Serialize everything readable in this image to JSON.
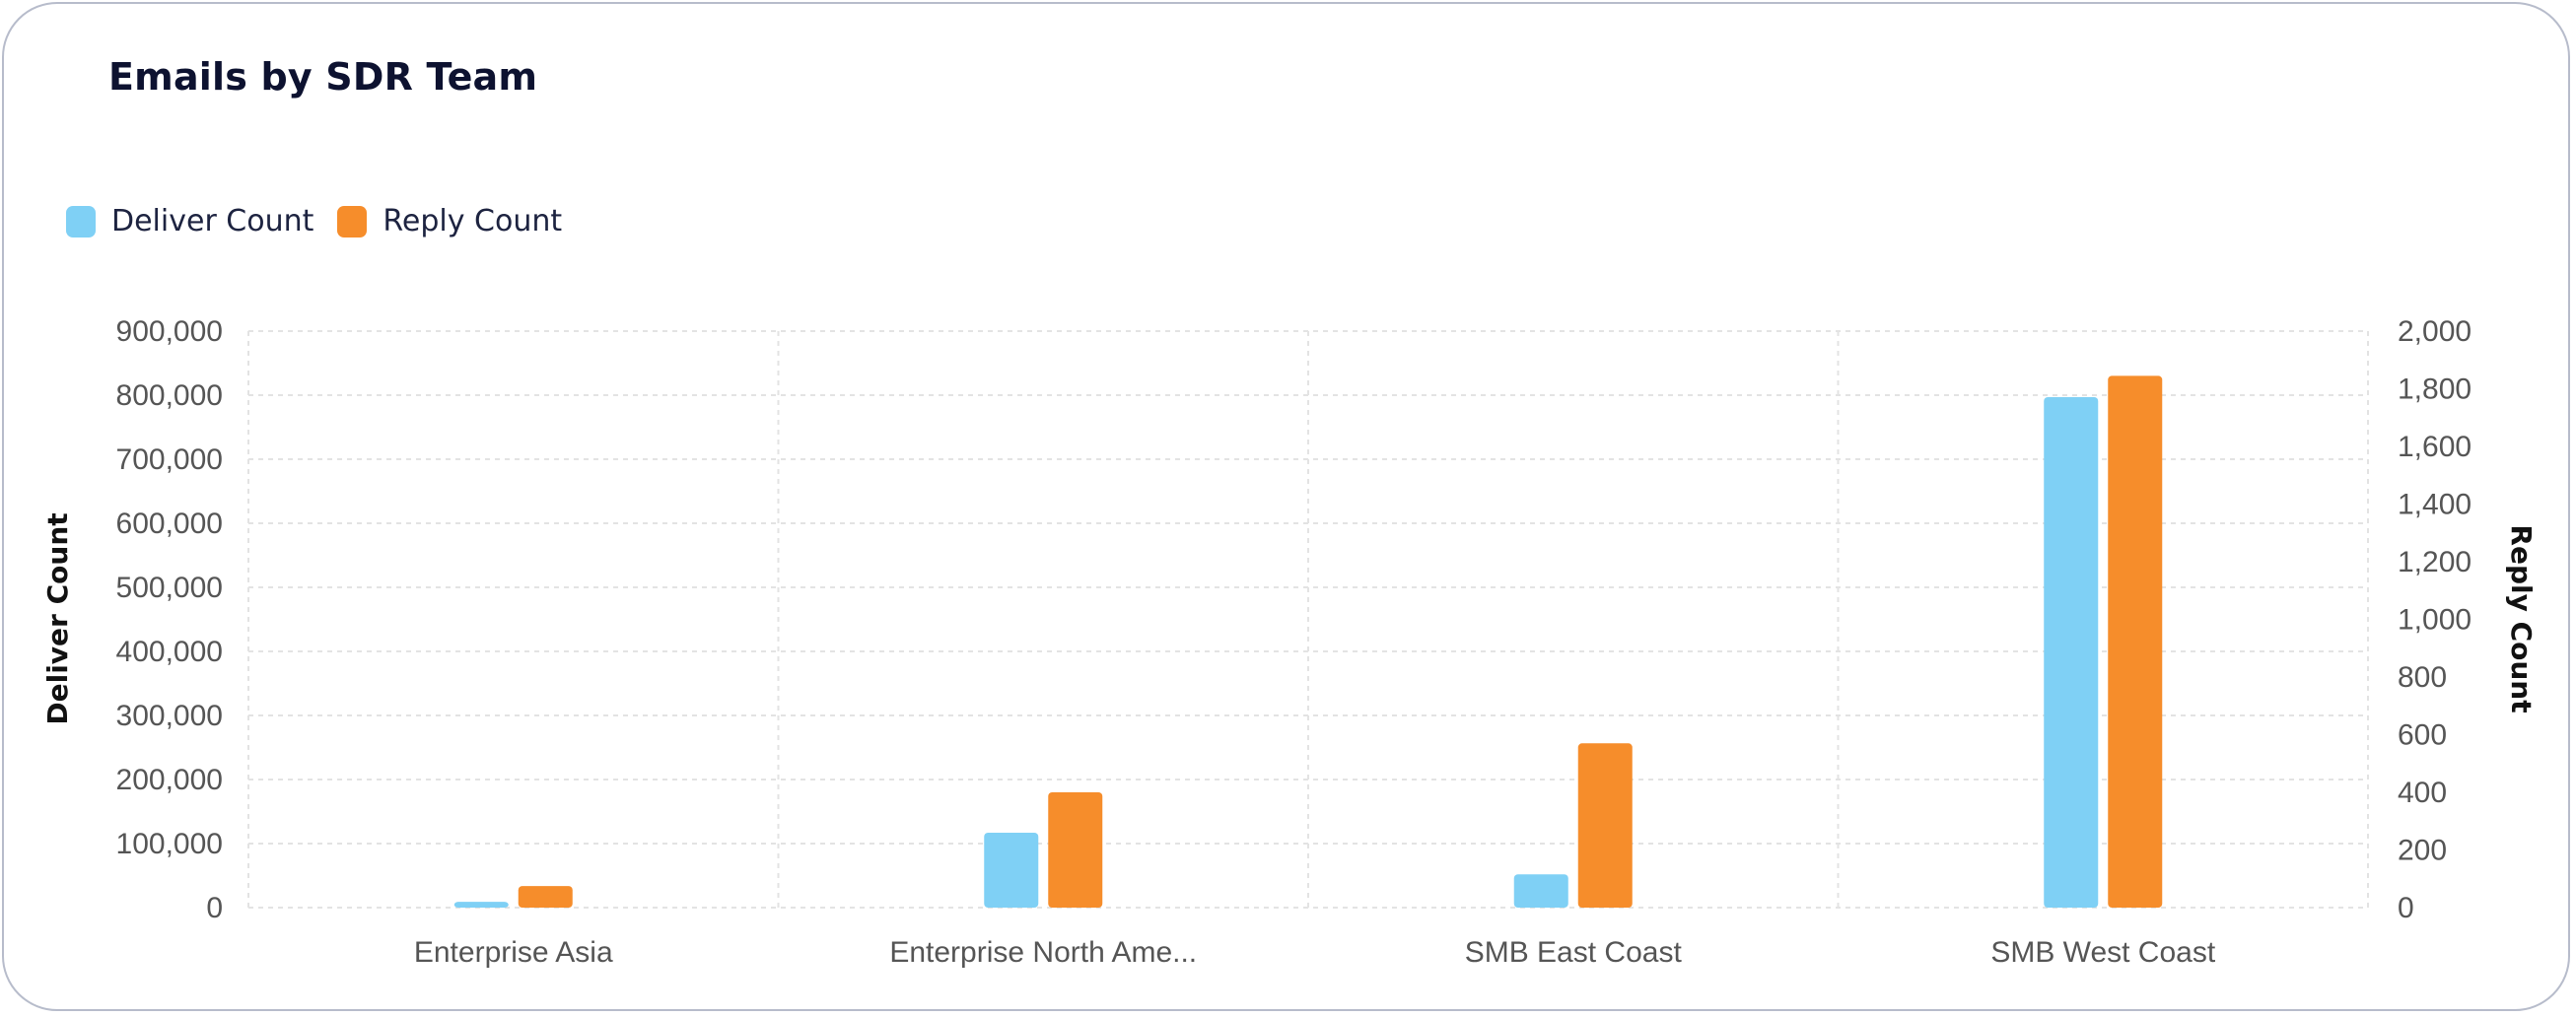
{
  "title": "Emails by SDR Team",
  "colors": {
    "deliver": "#7fd0f5",
    "reply": "#f68d2b",
    "grid": "#e3e3e3"
  },
  "chart_data": {
    "type": "bar",
    "title": "Emails by SDR Team",
    "categories": [
      "Enterprise Asia",
      "Enterprise North Ame...",
      "SMB East Coast",
      "SMB West Coast"
    ],
    "series": [
      {
        "name": "Deliver Count",
        "axis": "left",
        "color": "#7fd0f5",
        "values": [
          9000,
          117000,
          52000,
          797000
        ]
      },
      {
        "name": "Reply Count",
        "axis": "right",
        "color": "#f68d2b",
        "values": [
          75,
          400,
          570,
          1845
        ]
      }
    ],
    "ylabel_left": "Deliver Count",
    "ylabel_right": "Reply Count",
    "ylim_left": [
      0,
      900000
    ],
    "ylim_right": [
      0,
      2000
    ],
    "yticks_left": [
      "0",
      "100,000",
      "200,000",
      "300,000",
      "400,000",
      "500,000",
      "600,000",
      "700,000",
      "800,000",
      "900,000"
    ],
    "yticks_right": [
      "0",
      "200",
      "400",
      "600",
      "800",
      "1,000",
      "1,200",
      "1,400",
      "1,600",
      "1,800",
      "2,000"
    ],
    "legend_position": "top-left",
    "grid": true
  }
}
